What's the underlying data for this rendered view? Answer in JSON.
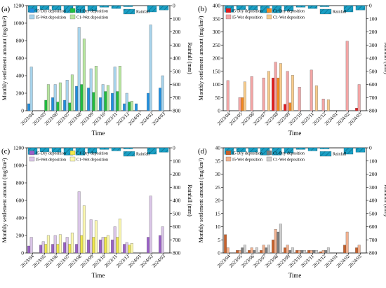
{
  "figure": {
    "time_label": "Time",
    "y_left_label": "Monthly settlement amount (mg/km²)",
    "y_right_label": "Rainfall (mm)",
    "categories": [
      "2023/04",
      "2023/05",
      "2023/06",
      "2023/07",
      "2023/08",
      "2023/09",
      "2023/10",
      "2023/11",
      "2023/12",
      "2024/01",
      "2024/02",
      "2024/03"
    ]
  },
  "chart_data": [
    {
      "type": "bar",
      "panel_label": "(a)",
      "legend": [
        {
          "label": "I5-Dry deposition",
          "color": "#1f8fe0"
        },
        {
          "label": "I5-Wet deposition",
          "color": "#a8d4ec"
        },
        {
          "label": "C1-Dry deposition",
          "color": "#1fbf3f"
        },
        {
          "label": "C1-Wet deposition",
          "color": "#b8e6a0"
        },
        {
          "label": "Rainfall",
          "color": "#1a9fc4",
          "hatch": true
        }
      ],
      "categories": [
        "2023/04",
        "2023/05",
        "2023/06",
        "2023/07",
        "2023/08",
        "2023/09",
        "2023/10",
        "2023/11",
        "2023/12",
        "2024/01",
        "2024/02",
        "2024/03"
      ],
      "series": [
        {
          "name": "I5-Dry deposition",
          "values": [
            80,
            0,
            150,
            120,
            280,
            260,
            150,
            200,
            80,
            80,
            200,
            260
          ],
          "color": "#1f8fe0"
        },
        {
          "name": "I5-Wet deposition",
          "values": [
            500,
            0,
            300,
            350,
            950,
            480,
            300,
            500,
            200,
            0,
            980,
            400
          ],
          "color": "#a8d4ec"
        },
        {
          "name": "C1-Dry deposition",
          "values": [
            0,
            120,
            100,
            90,
            300,
            210,
            220,
            220,
            100,
            0,
            0,
            0
          ],
          "color": "#1fbf3f"
        },
        {
          "name": "C1-Wet deposition",
          "values": [
            0,
            300,
            320,
            410,
            820,
            510,
            290,
            510,
            110,
            0,
            0,
            0
          ],
          "color": "#b8e6a0"
        }
      ],
      "rainfall": {
        "name": "Rainfall",
        "values": [
          50,
          30,
          32,
          55,
          55,
          40,
          12,
          22,
          8,
          0,
          48,
          33
        ],
        "color": "#1a9fc4"
      },
      "ylim": [
        0,
        1200
      ],
      "yticks": [
        "0",
        "200",
        "400",
        "600",
        "800",
        "1000",
        "1200"
      ],
      "rain_lim": [
        0,
        800
      ],
      "rain_ticks": [
        "0",
        "100",
        "200",
        "300",
        "400",
        "500",
        "600",
        "700",
        "800"
      ]
    },
    {
      "type": "bar",
      "panel_label": "(b)",
      "legend": [
        {
          "label": "I5-Dry deposition",
          "color": "#e31a1c"
        },
        {
          "label": "I5-Wet deposition",
          "color": "#f4a6a6"
        },
        {
          "label": "C1-Dry deposition",
          "color": "#f5891f"
        },
        {
          "label": "C1-Wet deposition",
          "color": "#f8cc8c"
        },
        {
          "label": "Rainfall",
          "color": "#1a9fc4",
          "hatch": true
        }
      ],
      "categories": [
        "2023/04",
        "2023/05",
        "2023/06",
        "2023/07",
        "2023/08",
        "2023/09",
        "2023/10",
        "2023/11",
        "2023/12",
        "2024/01",
        "2024/02",
        "2024/03"
      ],
      "series": [
        {
          "name": "I5-Dry deposition",
          "values": [
            0,
            0,
            0,
            0,
            125,
            25,
            0,
            0,
            0,
            0,
            0,
            10
          ],
          "color": "#e31a1c"
        },
        {
          "name": "I5-Wet deposition",
          "values": [
            115,
            50,
            130,
            125,
            185,
            150,
            90,
            155,
            45,
            0,
            265,
            100
          ],
          "color": "#f4a6a6"
        },
        {
          "name": "C1-Dry deposition",
          "values": [
            0,
            50,
            0,
            0,
            125,
            30,
            0,
            0,
            0,
            0,
            0,
            0
          ],
          "color": "#f5891f"
        },
        {
          "name": "C1-Wet deposition",
          "values": [
            0,
            110,
            0,
            150,
            180,
            135,
            0,
            95,
            42,
            0,
            0,
            0
          ],
          "color": "#f8cc8c"
        }
      ],
      "rainfall": {
        "name": "Rainfall",
        "values": [
          50,
          30,
          32,
          55,
          55,
          40,
          12,
          22,
          8,
          0,
          48,
          33
        ],
        "color": "#1a9fc4"
      },
      "ylim": [
        0,
        400
      ],
      "yticks": [
        "0",
        "50",
        "100",
        "150",
        "200",
        "250",
        "300",
        "350",
        "400"
      ],
      "rain_lim": [
        0,
        800
      ],
      "rain_ticks": [
        "0",
        "100",
        "200",
        "300",
        "400",
        "500",
        "600",
        "700",
        "800"
      ]
    },
    {
      "type": "bar",
      "panel_label": "(c)",
      "legend": [
        {
          "label": "I5-Dry deposition",
          "color": "#9a5fc7"
        },
        {
          "label": "I5-Wet deposition",
          "color": "#dbc6e8"
        },
        {
          "label": "C1-Dry deposition",
          "color": "#f0e84a"
        },
        {
          "label": "C1-Wet deposition",
          "color": "#fbf8b0"
        },
        {
          "label": "Rainfall",
          "color": "#1a9fc4",
          "hatch": true
        }
      ],
      "categories": [
        "2023/04",
        "2023/05",
        "2023/06",
        "2023/07",
        "2023/08",
        "2023/09",
        "2023/10",
        "2023/11",
        "2023/12",
        "2024/01",
        "2024/02",
        "2024/03"
      ],
      "series": [
        {
          "name": "I5-Dry deposition",
          "values": [
            80,
            90,
            100,
            120,
            100,
            150,
            150,
            150,
            100,
            0,
            180,
            200
          ],
          "color": "#9a5fc7"
        },
        {
          "name": "I5-Wet deposition",
          "values": [
            180,
            130,
            200,
            180,
            700,
            380,
            180,
            300,
            120,
            0,
            650,
            300
          ],
          "color": "#dbc6e8"
        },
        {
          "name": "C1-Dry deposition",
          "values": [
            0,
            100,
            100,
            100,
            200,
            180,
            180,
            180,
            90,
            0,
            0,
            0
          ],
          "color": "#f0e84a"
        },
        {
          "name": "C1-Wet deposition",
          "values": [
            0,
            200,
            210,
            230,
            540,
            370,
            200,
            390,
            110,
            0,
            0,
            0
          ],
          "color": "#fbf8b0"
        }
      ],
      "rainfall": {
        "name": "Rainfall",
        "values": [
          50,
          30,
          32,
          55,
          55,
          40,
          12,
          22,
          8,
          0,
          48,
          33
        ],
        "color": "#1a9fc4"
      },
      "ylim": [
        0,
        1200
      ],
      "yticks": [
        "0",
        "200",
        "400",
        "600",
        "800",
        "1000",
        "1200"
      ],
      "rain_lim": [
        0,
        800
      ],
      "rain_ticks": [
        "0",
        "100",
        "200",
        "300",
        "400",
        "500",
        "600",
        "700",
        "800"
      ]
    },
    {
      "type": "bar",
      "panel_label": "(d)",
      "legend": [
        {
          "label": "I5-Dry deposition",
          "color": "#c8602a"
        },
        {
          "label": "I5-Wet deposition",
          "color": "#f2b290"
        },
        {
          "label": "C1-Dry deposition",
          "color": "#7d7d7d"
        },
        {
          "label": "C1-Wet deposition",
          "color": "#cfcfcf"
        },
        {
          "label": "Rainfall",
          "color": "#1a9fc4",
          "hatch": true
        }
      ],
      "categories": [
        "2023/04",
        "2023/05",
        "2023/06",
        "2023/07",
        "2023/08",
        "2023/09",
        "2023/10",
        "2023/11",
        "2023/12",
        "2024/01",
        "2024/02",
        "2024/03"
      ],
      "series": [
        {
          "name": "I5-Dry deposition",
          "values": [
            7,
            1,
            1,
            1,
            5,
            2,
            1,
            1,
            0.5,
            0,
            3,
            2
          ],
          "color": "#c8602a"
        },
        {
          "name": "I5-Wet deposition",
          "values": [
            2,
            1,
            2,
            3,
            9,
            3,
            1,
            1,
            1,
            0,
            8,
            3
          ],
          "color": "#f2b290"
        },
        {
          "name": "C1-Dry deposition",
          "values": [
            0,
            2,
            1,
            2,
            8,
            1,
            1,
            1,
            1,
            0,
            0,
            0
          ],
          "color": "#7d7d7d"
        },
        {
          "name": "C1-Wet deposition",
          "values": [
            0,
            3,
            2,
            3,
            11,
            2,
            1,
            1,
            2,
            0,
            0,
            0
          ],
          "color": "#cfcfcf"
        }
      ],
      "rainfall": {
        "name": "Rainfall",
        "values": [
          50,
          30,
          32,
          55,
          55,
          40,
          12,
          22,
          8,
          0,
          48,
          33
        ],
        "color": "#1a9fc4"
      },
      "ylim": [
        0,
        40
      ],
      "yticks": [
        "0",
        "5",
        "10",
        "15",
        "20",
        "25",
        "30",
        "35",
        "40"
      ],
      "rain_lim": [
        0,
        800
      ],
      "rain_ticks": [
        "0",
        "100",
        "200",
        "300",
        "400",
        "500",
        "600",
        "700",
        "800"
      ]
    }
  ]
}
